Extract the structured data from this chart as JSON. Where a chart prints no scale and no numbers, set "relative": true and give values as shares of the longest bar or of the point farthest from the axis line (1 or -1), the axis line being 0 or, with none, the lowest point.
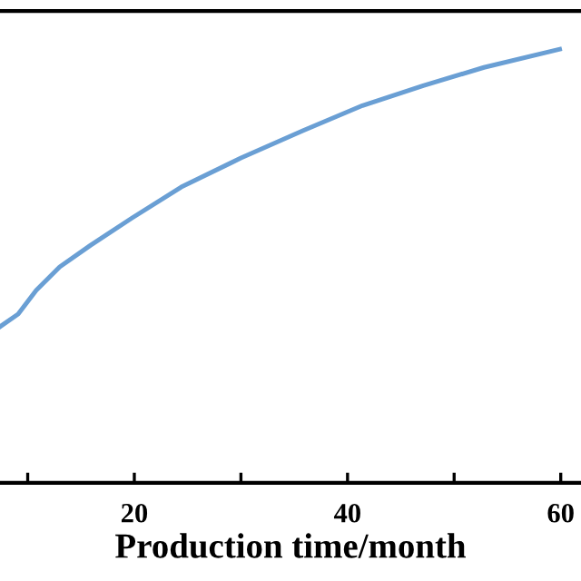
{
  "chart_data": {
    "type": "line",
    "xlabel": "Production time/month",
    "relative": true,
    "xlim": [
      7.4,
      61.9
    ],
    "xticks": [
      {
        "value": 10,
        "label": null
      },
      20,
      {
        "value": 30,
        "label": null
      },
      40,
      {
        "value": 50,
        "label": null
      },
      60
    ],
    "grid": false,
    "legend": false,
    "marker": "none",
    "line_style": "solid",
    "series": [
      {
        "color": "#6a9fd4",
        "x": [
          7.4,
          9.1,
          10.8,
          13.0,
          15.9,
          19.8,
          24.4,
          30.0,
          35.8,
          41.4,
          47.1,
          52.8,
          59.9
        ],
        "values": [
          0.36,
          0.389,
          0.444,
          0.498,
          0.548,
          0.611,
          0.682,
          0.749,
          0.812,
          0.87,
          0.916,
          0.958,
          1.0
        ]
      }
    ]
  }
}
